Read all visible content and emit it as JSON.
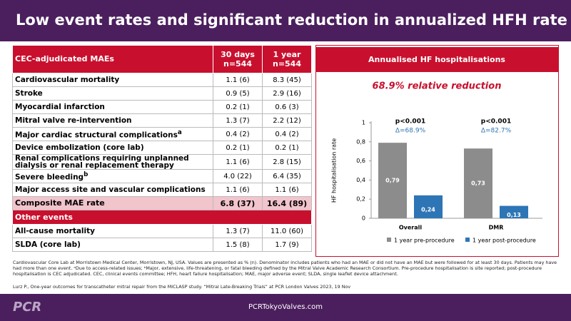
{
  "header": {
    "title": "Low event rates and significant reduction in annualized HFH rate"
  },
  "table": {
    "header": [
      "CEC-adjudicated MAEs",
      [
        "30 days",
        "n=544"
      ],
      [
        "1 year",
        "n=544"
      ]
    ],
    "rows": [
      {
        "label": "Cardiovascular mortality",
        "values": [
          "1.1 (6)",
          "8.3 (45)"
        ]
      },
      {
        "label": "Stroke",
        "values": [
          "0.9 (5)",
          "2.9 (16)"
        ]
      },
      {
        "label": "Myocardial infarction",
        "values": [
          "0.2 (1)",
          "0.6 (3)"
        ]
      },
      {
        "label": "Mitral valve re-intervention",
        "values": [
          "1.3 (7)",
          "2.2 (12)"
        ]
      },
      {
        "label": "Major cardiac structural complications",
        "sup": "a",
        "values": [
          "0.4 (2)",
          "0.4 (2)"
        ]
      },
      {
        "label": "Device embolization (core lab)",
        "values": [
          "0.2 (1)",
          "0.2 (1)"
        ]
      },
      {
        "label": "Renal complications requiring unplanned dialysis or renal replacement therapy",
        "values": [
          "1.1 (6)",
          "2.8 (15)"
        ]
      },
      {
        "label": "Severe bleeding",
        "sup": "b",
        "values": [
          "4.0 (22)",
          "6.4 (35)"
        ]
      },
      {
        "label": "Major access site and vascular complications",
        "values": [
          "1.1 (6)",
          "1.1 (6)"
        ]
      }
    ],
    "composite": {
      "label": "Composite MAE rate",
      "values": [
        "6.8 (37)",
        "16.4 (89)"
      ]
    },
    "other_header": "Other events",
    "other_rows": [
      {
        "label": "All-cause mortality",
        "values": [
          "1.3 (7)",
          "11.0 (60)"
        ]
      },
      {
        "label": "SLDA (core lab)",
        "values": [
          "1.5 (8)",
          "1.7 (9)"
        ]
      }
    ]
  },
  "chart_data": {
    "type": "bar",
    "title": "Annualised HF hospitalisations",
    "subtitle": "68.9% relative reduction",
    "y_label": "HF hospitalisation rate",
    "categories": [
      "Overall",
      "DMR"
    ],
    "annotations": [
      [
        "p<0.001",
        "Δ=68.9%"
      ],
      [
        "p<0.001",
        "Δ=82.7%"
      ]
    ],
    "series": [
      {
        "name": "1 year pre-procedure",
        "color": "#8c8c8c",
        "values": [
          0.79,
          0.73
        ],
        "value_labels": [
          "0,79",
          "0,73"
        ]
      },
      {
        "name": "1 year post-procedure",
        "color": "#2e75b6",
        "values": [
          0.24,
          0.13
        ],
        "value_labels": [
          "0,24",
          "0,13"
        ]
      }
    ],
    "ylim": [
      0,
      1
    ],
    "yticks": [
      0,
      {
        "value": 0.2,
        "label": "0,2"
      },
      {
        "value": 0.4,
        "label": "0,4"
      },
      {
        "value": 0.6,
        "label": "0,6"
      },
      {
        "value": 0.8,
        "label": "0,8"
      },
      1
    ]
  },
  "footnote": "Cardiovascular Core Lab at Morristown Medical Center, Morristown, NJ, USA. Values are presented as % (n). Denominator includes patients who had an MAE or did not have an MAE but were followed for at least 30 days. Patients may have had more than one event. ᵃDue to access-related issues; ᵇMajor, extensive, life-threatening, or fatal bleeding defined by the Mitral Valve Academic Research Consortium. Pre-procedure hospitalisation is site reported; post-procedure hospitalisation is CEC adjudicated. CEC, clinical events committee; HFH, heart failure hospitalisation; MAE, major adverse event; SLDA, single leaflet device attachment.",
  "citation": "Lurz P., One-year outcomes for transcatheter mitral repair from the MiCLASP study. “Mitral Late-Breaking Trials” at PCR London Valves 2023, 19 Nov",
  "footer": {
    "logo": "PCR",
    "url": "PCRTokyoValves.com"
  }
}
